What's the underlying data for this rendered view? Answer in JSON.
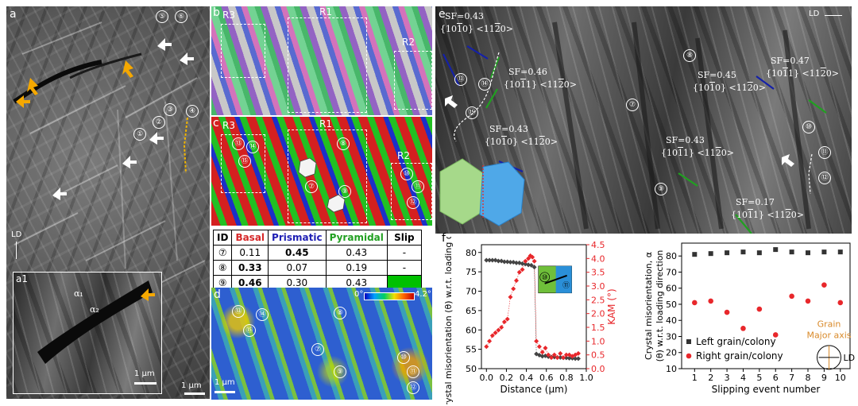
{
  "panels": {
    "a": {
      "letter": "a",
      "ld": "LD",
      "scale": "1 µm",
      "markers": [
        "①",
        "②",
        "③",
        "④",
        "⑤",
        "⑥"
      ]
    },
    "a1": {
      "letter": "a1",
      "alpha1": "α₁",
      "alpha2": "α₂",
      "scale": "1 µm"
    },
    "b": {
      "letter": "b",
      "regions": [
        "R3",
        "R1",
        "R2"
      ]
    },
    "c": {
      "letter": "c",
      "regions": [
        "R3",
        "R1",
        "R2"
      ],
      "markers": [
        "⑬",
        "⑭",
        "⑮",
        "⑧",
        "⑦",
        "⑨",
        "⑩",
        "⑪",
        "⑫"
      ]
    },
    "d": {
      "letter": "d",
      "scale_min": "0°",
      "scale_max": "4.2°",
      "scale": "1 µm",
      "markers": [
        "⑬",
        "⑭",
        "⑮",
        "⑧",
        "⑦",
        "⑨",
        "⑩",
        "⑪",
        "⑫"
      ]
    },
    "e": {
      "letter": "e",
      "ld": "LD",
      "annotations": [
        {
          "sf": "SF=0.43",
          "plane": "{10<span style='text-decoration:overline'>1</span>0} <11<span style='text-decoration:overline'>2</span>0>"
        },
        {
          "sf": "SF=0.46",
          "plane": "{10<span style='text-decoration:overline'>1</span>1} <11<span style='text-decoration:overline'>2</span>0>"
        },
        {
          "sf": "SF=0.43",
          "plane": "{10<span style='text-decoration:overline'>1</span>0} <11<span style='text-decoration:overline'>2</span>0>"
        },
        {
          "sf": "SF=0.45",
          "plane": "{10<span style='text-decoration:overline'>1</span>0} <11<span style='text-decoration:overline'>2</span>0>"
        },
        {
          "sf": "SF=0.47",
          "plane": "{10<span style='text-decoration:overline'>1</span>1} <11<span style='text-decoration:overline'>2</span>0>"
        },
        {
          "sf": "SF=0.43",
          "plane": "{10<span style='text-decoration:overline'>1</span>1} <11<span style='text-decoration:overline'>2</span>0>"
        },
        {
          "sf": "SF=0.17",
          "plane": "{10<span style='text-decoration:overline'>1</span>1} <11<span style='text-decoration:overline'>2</span>0>"
        }
      ],
      "markers": [
        "⑬",
        "⑭",
        "⑮",
        "⑦",
        "⑧",
        "⑨",
        "⑩",
        "⑪",
        "⑫"
      ]
    },
    "f": {
      "letter": "f"
    }
  },
  "table": {
    "headers": [
      "ID",
      "Basal",
      "Prismatic",
      "Pyramidal",
      "Slip"
    ],
    "header_colors": [
      "#000000",
      "#d62728",
      "#1f1fb4",
      "#22a022",
      "#000000"
    ],
    "rows": [
      {
        "id": "⑦",
        "basal": "0.11",
        "prismatic": "0.45",
        "pyramidal": "0.43",
        "slip": "-"
      },
      {
        "id": "⑧",
        "basal": "0.33",
        "prismatic": "0.07",
        "pyramidal": "0.19",
        "slip": "-"
      },
      {
        "id": "⑨",
        "basal": "0.46",
        "prismatic": "0.30",
        "pyramidal": "0.43",
        "slip": ""
      }
    ],
    "bold": [
      [
        "prismatic"
      ],
      [
        "basal"
      ],
      [
        "basal"
      ]
    ],
    "slip_fill_color": "#00c000"
  },
  "chart_data": [
    {
      "type": "scatter",
      "xlabel": "Distance (µm)",
      "ylabel": "Crystal misorientation (θ) w.r.t. loading direction",
      "y2label": "KAM (°)",
      "xlim": [
        -0.05,
        1.0
      ],
      "ylim": [
        50,
        82
      ],
      "y2lim": [
        0,
        4.5
      ],
      "xticks": [
        "0.0",
        "0.2",
        "0.4",
        "0.6",
        "0.8",
        "1.0"
      ],
      "yticks": [
        "50",
        "55",
        "60",
        "65",
        "70",
        "75",
        "80"
      ],
      "y2ticks": [
        "0.0",
        "0.5",
        "1.0",
        "1.5",
        "2.0",
        "2.5",
        "3.0",
        "3.5",
        "4.0",
        "4.5"
      ],
      "inset_markers": [
        "⑩",
        "⑪"
      ],
      "series": [
        {
          "axis": "left",
          "color": "#444444",
          "x": [
            0.0,
            0.03,
            0.06,
            0.09,
            0.12,
            0.15,
            0.18,
            0.21,
            0.24,
            0.27,
            0.3,
            0.33,
            0.36,
            0.39,
            0.42,
            0.45,
            0.48,
            0.5,
            0.53,
            0.56,
            0.59,
            0.62,
            0.65,
            0.68,
            0.71,
            0.74,
            0.77,
            0.8,
            0.83,
            0.86,
            0.89,
            0.92
          ],
          "y": [
            78,
            78,
            78,
            78,
            77.8,
            77.8,
            77.6,
            77.6,
            77.5,
            77.5,
            77.3,
            77.3,
            77.1,
            77,
            76.8,
            76.7,
            76.2,
            53.8,
            53.5,
            53.2,
            53.3,
            53.1,
            53,
            53,
            52.9,
            52.9,
            52.8,
            52.8,
            52.7,
            52.7,
            52.6,
            52.6
          ]
        },
        {
          "axis": "right",
          "color": "#e8272b",
          "x": [
            0.0,
            0.03,
            0.06,
            0.09,
            0.12,
            0.15,
            0.18,
            0.21,
            0.24,
            0.27,
            0.3,
            0.33,
            0.36,
            0.39,
            0.42,
            0.44,
            0.46,
            0.48,
            0.5,
            0.53,
            0.56,
            0.59,
            0.62,
            0.65,
            0.68,
            0.71,
            0.74,
            0.77,
            0.8,
            0.83,
            0.86,
            0.89,
            0.92
          ],
          "y": [
            0.8,
            1.0,
            1.2,
            1.3,
            1.4,
            1.5,
            1.7,
            1.8,
            2.6,
            2.9,
            3.2,
            3.5,
            3.6,
            3.9,
            4.0,
            4.1,
            4.05,
            3.9,
            1.0,
            0.8,
            0.6,
            0.75,
            0.5,
            0.4,
            0.5,
            0.4,
            0.55,
            0.4,
            0.5,
            0.5,
            0.45,
            0.5,
            0.55
          ]
        }
      ]
    },
    {
      "type": "scatter",
      "xlabel": "Slipping event number",
      "ylabel": "Crystal misorientation, α (θ) w.r.t. loading direction",
      "xlim": [
        0.2,
        10.6
      ],
      "ylim": [
        10,
        88
      ],
      "xticks": [
        "1",
        "2",
        "3",
        "4",
        "5",
        "6",
        "7",
        "8",
        "9",
        "10"
      ],
      "yticks": [
        "10",
        "20",
        "30",
        "40",
        "50",
        "60",
        "70",
        "80"
      ],
      "annotation": "Grain Major axis",
      "ld": "LD",
      "series": [
        {
          "name": "Left grain/colony",
          "color": "#333333",
          "marker": "square",
          "x": [
            1,
            2,
            3,
            4,
            5,
            6,
            7,
            8,
            9,
            10
          ],
          "y": [
            81,
            81.5,
            82,
            82.5,
            82,
            84,
            82.5,
            82,
            82.5,
            82.5
          ]
        },
        {
          "name": "Right grain/colony",
          "color": "#e8272b",
          "marker": "circle",
          "x": [
            1,
            2,
            3,
            4,
            5,
            6,
            7,
            8,
            9,
            10
          ],
          "y": [
            51,
            52,
            45,
            35,
            47,
            31,
            55,
            52,
            62,
            51
          ]
        }
      ]
    }
  ]
}
